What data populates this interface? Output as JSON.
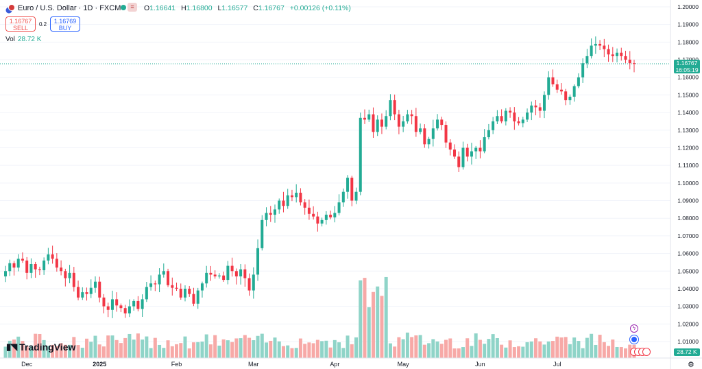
{
  "header": {
    "title": "Euro / U.S. Dollar · 1D · FXCM",
    "ohlc": [
      {
        "key": "O",
        "value": "1.16641"
      },
      {
        "key": "H",
        "value": "1.16800"
      },
      {
        "key": "L",
        "value": "1.16577"
      },
      {
        "key": "C",
        "value": "1.16767"
      },
      {
        "key": "",
        "value": "+0.00126 (+0.11%)"
      }
    ]
  },
  "trade": {
    "sell_price": "1.16767",
    "sell_label": "SELL",
    "spread": "0.2",
    "buy_price": "1.16769",
    "buy_label": "BUY"
  },
  "volume": {
    "label": "Vol",
    "value": "28.72 K"
  },
  "last_price_tag": {
    "price": "1.16767",
    "countdown": "16:05:19"
  },
  "volume_tag": "28.72 K",
  "logo_text": "TradingView",
  "colors": {
    "up": "#22ab94",
    "down": "#f23645",
    "vol_up": "#8fd4c8",
    "vol_down": "#f7a9a7",
    "grid": "#f0f3fa"
  },
  "chart_data": {
    "type": "candlestick",
    "ylim": [
      1.003,
      1.2
    ],
    "y_ticks": [
      "1.20000",
      "1.19000",
      "1.18000",
      "1.17000",
      "1.16000",
      "1.15000",
      "1.14000",
      "1.13000",
      "1.12000",
      "1.11000",
      "1.10000",
      "1.09000",
      "1.08000",
      "1.07000",
      "1.06000",
      "1.05000",
      "1.04000",
      "1.03000",
      "1.02000",
      "1.01000"
    ],
    "x_labels": [
      "Dec",
      "2025",
      "Feb",
      "Mar",
      "Apr",
      "May",
      "Jun",
      "Jul"
    ],
    "last_close": 1.16767,
    "closes": [
      1.05,
      1.0545,
      1.052,
      1.057,
      1.056,
      1.049,
      1.054,
      1.051,
      1.0505,
      1.056,
      1.0595,
      1.057,
      1.052,
      1.05,
      1.046,
      1.049,
      1.041,
      1.035,
      1.038,
      1.037,
      1.0405,
      1.044,
      1.035,
      1.03,
      1.028,
      1.034,
      1.0305,
      1.029,
      1.026,
      1.03,
      1.033,
      1.0285,
      1.034,
      1.041,
      1.043,
      1.0425,
      1.048,
      1.05,
      1.042,
      1.0405,
      1.04,
      1.035,
      1.04,
      1.037,
      1.0315,
      1.039,
      1.043,
      1.049,
      1.048,
      1.047,
      1.0475,
      1.045,
      1.053,
      1.05,
      1.047,
      1.051,
      1.046,
      1.039,
      1.048,
      1.063,
      1.079,
      1.083,
      1.082,
      1.085,
      1.09,
      1.087,
      1.093,
      1.092,
      1.0945,
      1.089,
      1.086,
      1.0825,
      1.081,
      1.077,
      1.079,
      1.082,
      1.0805,
      1.083,
      1.089,
      1.095,
      1.103,
      1.09,
      1.095,
      1.137,
      1.136,
      1.139,
      1.129,
      1.136,
      1.132,
      1.138,
      1.147,
      1.139,
      1.132,
      1.135,
      1.139,
      1.138,
      1.129,
      1.131,
      1.122,
      1.125,
      1.131,
      1.136,
      1.133,
      1.123,
      1.119,
      1.115,
      1.109,
      1.12,
      1.115,
      1.118,
      1.12,
      1.118,
      1.126,
      1.13,
      1.135,
      1.138,
      1.135,
      1.141,
      1.14,
      1.135,
      1.134,
      1.136,
      1.14,
      1.144,
      1.143,
      1.141,
      1.15,
      1.16,
      1.156,
      1.153,
      1.152,
      1.147,
      1.149,
      1.155,
      1.16,
      1.168,
      1.172,
      1.178,
      1.179,
      1.178,
      1.176,
      1.173,
      1.172,
      1.174,
      1.172,
      1.17,
      1.168,
      1.16767
    ],
    "volume_max_k": 150
  }
}
